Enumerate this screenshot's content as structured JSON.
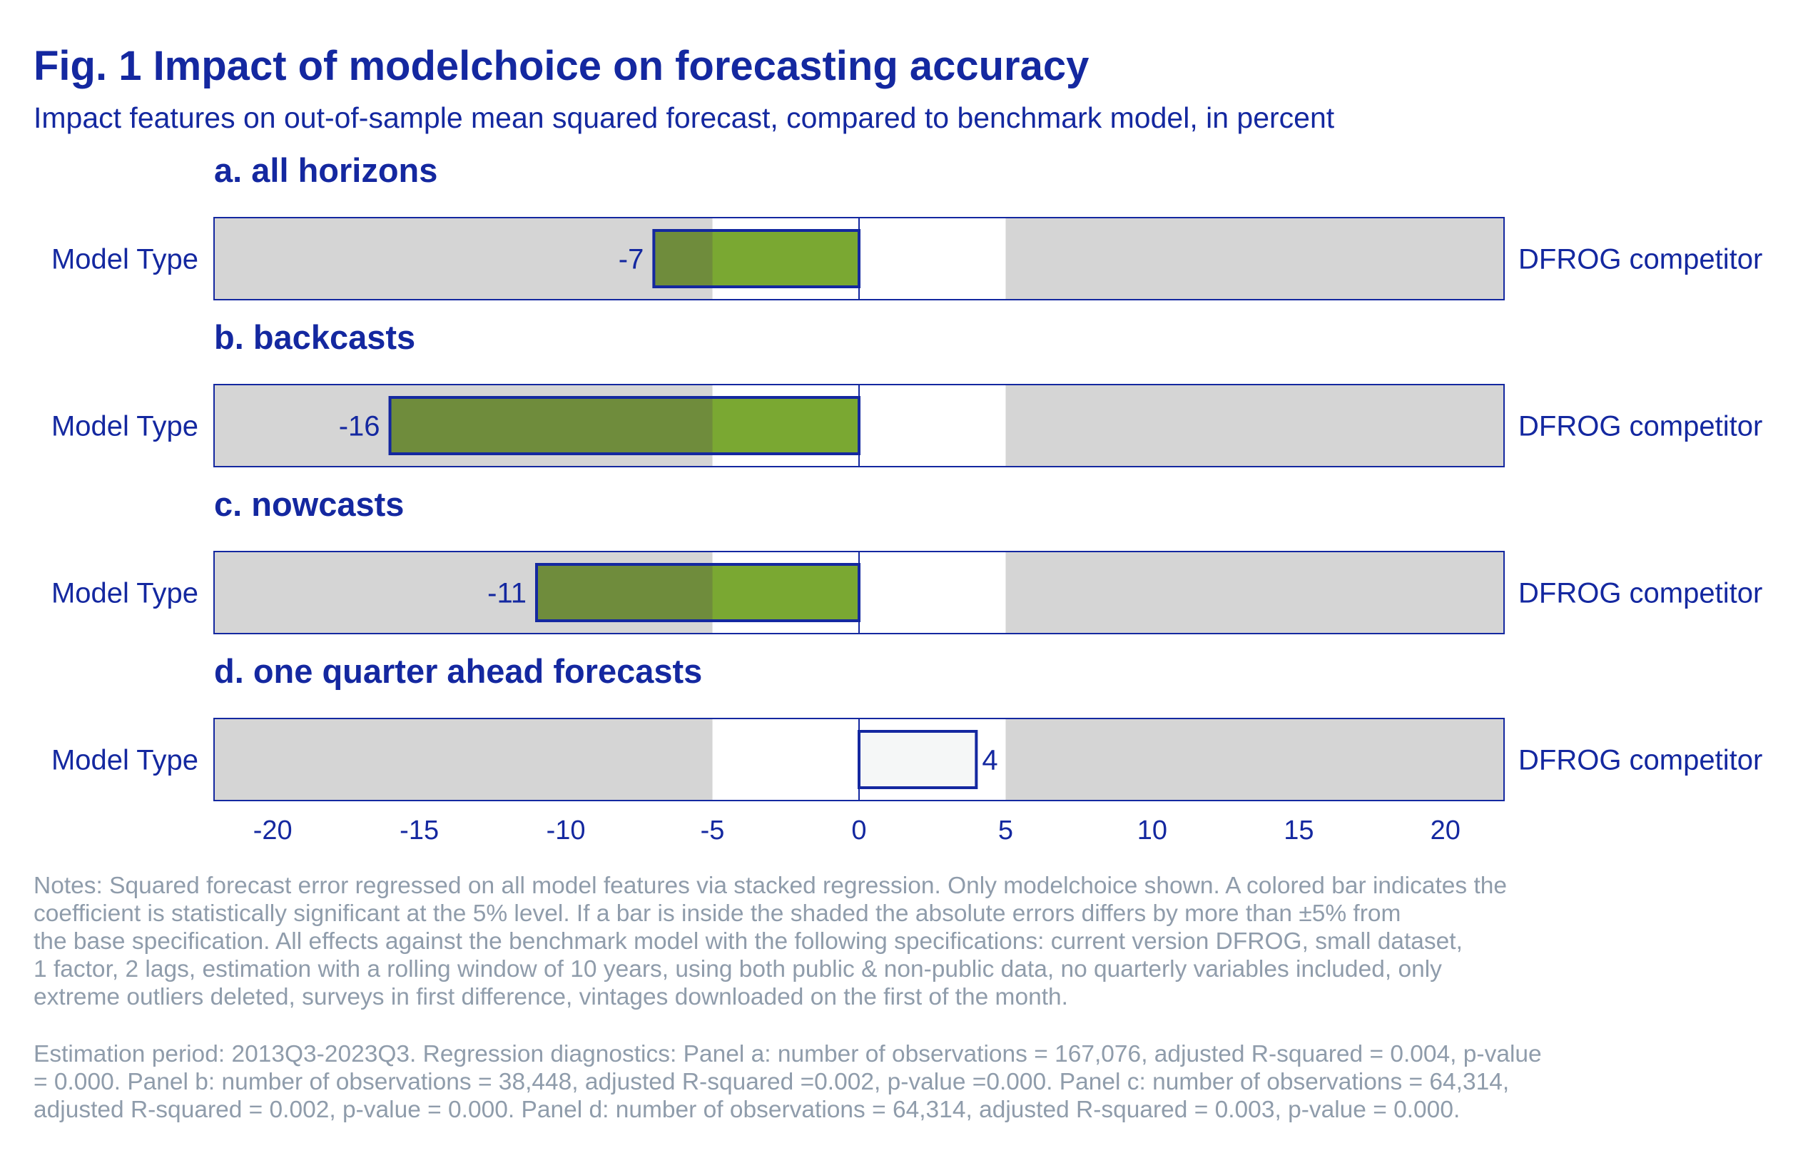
{
  "title": "Fig. 1 Impact of modelchoice on forecasting accuracy",
  "subtitle": "Impact features on out-of-sample mean squared forecast, compared to benchmark model, in percent",
  "colors": {
    "text": "#1428a0",
    "notes": "#8f9cab",
    "shade": "#d5d5d5",
    "significant_fill": "#7aa832",
    "significant_fill_in_shade": "#6f8c3c",
    "insignificant_fill": "#f5f7f7",
    "bar_outline": "#1428a0"
  },
  "chart_data": {
    "type": "bar",
    "orientation": "horizontal",
    "xlim": [
      -22,
      22
    ],
    "xticks": [
      -20,
      -15,
      -10,
      -5,
      0,
      5,
      10,
      15,
      20
    ],
    "shaded_outside": [
      -5,
      5
    ],
    "panels": [
      {
        "title": "a. all horizons",
        "left_label": "Model Type",
        "right_label": "DFROG competitor",
        "value": -7,
        "value_label": "-7",
        "significant": true
      },
      {
        "title": "b. backcasts",
        "left_label": "Model Type",
        "right_label": "DFROG competitor",
        "value": -16,
        "value_label": "-16",
        "significant": true
      },
      {
        "title": "c. nowcasts",
        "left_label": "Model Type",
        "right_label": "DFROG competitor",
        "value": -11,
        "value_label": "-11",
        "significant": true
      },
      {
        "title": "d. one quarter ahead forecasts",
        "left_label": "Model Type",
        "right_label": "DFROG competitor",
        "value": 4,
        "value_label": "4",
        "significant": false
      }
    ]
  },
  "notes": "Notes: Squared forecast error regressed on all model features via stacked regression. Only modelchoice shown. A colored bar indicates the\ncoefficient is statistically significant at the 5% level. If a bar is inside the shaded the absolute errors differs by more than ±5% from\nthe base specification. All effects against the benchmark model with the following specifications: current version DFROG, small dataset,\n1 factor, 2 lags, estimation with a rolling window of 10 years, using both public & non-public data, no quarterly variables included, only\nextreme outliers deleted, surveys in first difference, vintages downloaded on the first of the month.",
  "estimation": " Estimation period: 2013Q3-2023Q3. Regression diagnostics: Panel a: number of observations = 167,076, adjusted R-squared = 0.004, p-value\n= 0.000. Panel b: number of observations = 38,448, adjusted R-squared =0.002, p-value =0.000. Panel c: number of observations = 64,314,\nadjusted R-squared = 0.002, p-value = 0.000. Panel d: number of observations = 64,314, adjusted R-squared = 0.003, p-value = 0.000."
}
